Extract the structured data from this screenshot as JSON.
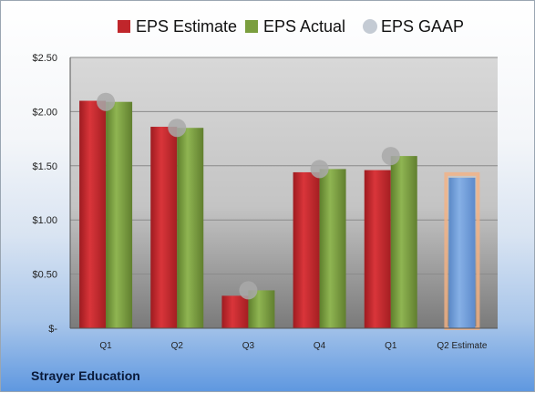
{
  "company": "Strayer Education",
  "chart_data": {
    "type": "bar",
    "categories": [
      "Q1",
      "Q2",
      "Q3",
      "Q4",
      "Q1",
      "Q2 Estimate"
    ],
    "series": [
      {
        "name": "EPS Estimate",
        "color": "#c0262b",
        "values": [
          2.1,
          1.86,
          0.3,
          1.44,
          1.46,
          null
        ]
      },
      {
        "name": "EPS Actual",
        "color": "#7a9e3e",
        "values": [
          2.09,
          1.85,
          0.35,
          1.47,
          1.59,
          null
        ]
      },
      {
        "name": "EPS GAAP",
        "color": "#a6a6a6",
        "marker": "circle",
        "values": [
          2.09,
          1.85,
          0.35,
          1.47,
          1.59,
          null
        ]
      }
    ],
    "estimate_bar": {
      "category": "Q2 Estimate",
      "value": 1.39,
      "color": "#6f9fd8",
      "highlight": "#f4b183"
    },
    "yticks": [
      "$-",
      "$0.50",
      "$1.00",
      "$1.50",
      "$2.00",
      "$2.50"
    ],
    "ylim": [
      0,
      2.5
    ],
    "grid": true,
    "legend": "top"
  }
}
